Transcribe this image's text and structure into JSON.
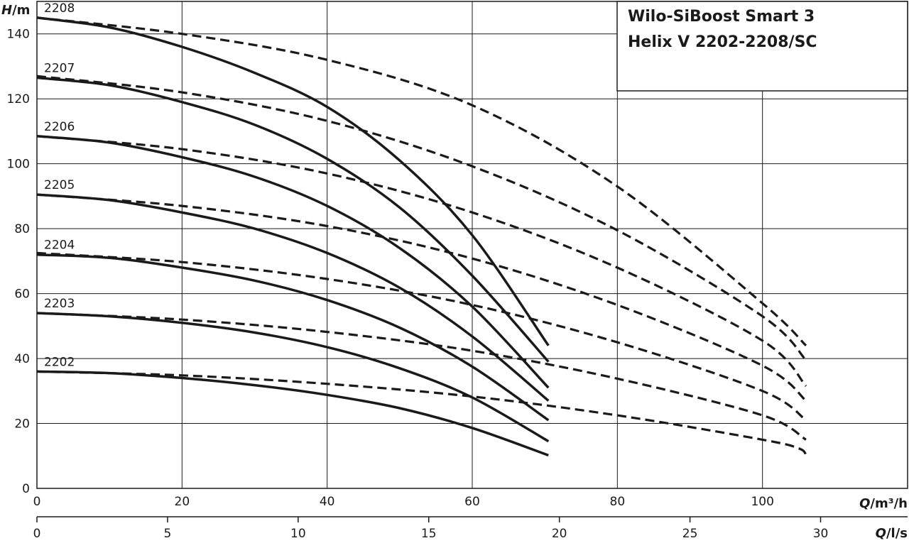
{
  "chart_data": {
    "type": "line",
    "title_lines": [
      "Wilo-SiBoost Smart 3",
      "Helix V 2202-2208/SC"
    ],
    "y_axis": {
      "name": "H",
      "unit": "/m",
      "range": [
        0,
        150
      ],
      "ticks": [
        0,
        20,
        40,
        60,
        80,
        100,
        120,
        140
      ]
    },
    "x_axis": {
      "name": "Q",
      "unit": "/m³/h",
      "range": [
        0,
        120
      ],
      "ticks": [
        0,
        20,
        40,
        60,
        80,
        100
      ]
    },
    "x2_axis": {
      "name": "Q",
      "unit": "/l/s",
      "range": [
        0,
        33.33
      ],
      "ticks": [
        0,
        5,
        10,
        15,
        20,
        25,
        30
      ]
    },
    "grid": true,
    "series": [
      {
        "name": "2202",
        "solid": [
          [
            0,
            36
          ],
          [
            10,
            35.5
          ],
          [
            20,
            34
          ],
          [
            30,
            31.8
          ],
          [
            40,
            28.8
          ],
          [
            50,
            24.7
          ],
          [
            60,
            18.6
          ],
          [
            70.5,
            10.2
          ]
        ],
        "dashed": [
          [
            0,
            36
          ],
          [
            20,
            34.8
          ],
          [
            40,
            32.2
          ],
          [
            60,
            28.3
          ],
          [
            80,
            22.5
          ],
          [
            100,
            15
          ],
          [
            105,
            12.3
          ],
          [
            106,
            10.3
          ]
        ]
      },
      {
        "name": "2203",
        "solid": [
          [
            0,
            54
          ],
          [
            10,
            53
          ],
          [
            20,
            51
          ],
          [
            30,
            48
          ],
          [
            40,
            43.5
          ],
          [
            50,
            37
          ],
          [
            60,
            28
          ],
          [
            70.5,
            14.5
          ]
        ],
        "dashed": [
          [
            0,
            54
          ],
          [
            20,
            52
          ],
          [
            40,
            48.2
          ],
          [
            60,
            42.4
          ],
          [
            80,
            33.8
          ],
          [
            100,
            22.5
          ],
          [
            106,
            15
          ]
        ]
      },
      {
        "name": "2204",
        "solid": [
          [
            0,
            72
          ],
          [
            10,
            71
          ],
          [
            20,
            68
          ],
          [
            30,
            64
          ],
          [
            40,
            58
          ],
          [
            50,
            49.5
          ],
          [
            60,
            37.5
          ],
          [
            70.5,
            21
          ]
        ],
        "dashed": [
          [
            0,
            72.5
          ],
          [
            20,
            69.7
          ],
          [
            40,
            64.5
          ],
          [
            60,
            56.5
          ],
          [
            80,
            45
          ],
          [
            100,
            30
          ],
          [
            106,
            21
          ]
        ]
      },
      {
        "name": "2205",
        "solid": [
          [
            0,
            90.5
          ],
          [
            10,
            88.8
          ],
          [
            20,
            85
          ],
          [
            30,
            80
          ],
          [
            40,
            72.5
          ],
          [
            50,
            61.8
          ],
          [
            60,
            46.8
          ],
          [
            70.5,
            27
          ]
        ],
        "dashed": [
          [
            0,
            90.5
          ],
          [
            20,
            87
          ],
          [
            40,
            80.8
          ],
          [
            60,
            70.8
          ],
          [
            80,
            56.5
          ],
          [
            100,
            37.8
          ],
          [
            106,
            27
          ]
        ]
      },
      {
        "name": "2206",
        "solid": [
          [
            0,
            108.5
          ],
          [
            10,
            106.5
          ],
          [
            20,
            102
          ],
          [
            30,
            96
          ],
          [
            40,
            87
          ],
          [
            50,
            74
          ],
          [
            60,
            56
          ],
          [
            70.5,
            31
          ]
        ],
        "dashed": [
          [
            0,
            108.5
          ],
          [
            20,
            104.5
          ],
          [
            40,
            97
          ],
          [
            60,
            85
          ],
          [
            80,
            68
          ],
          [
            100,
            45.5
          ],
          [
            106,
            31.5
          ]
        ]
      },
      {
        "name": "2207",
        "solid": [
          [
            0,
            126.5
          ],
          [
            10,
            124.2
          ],
          [
            20,
            119
          ],
          [
            30,
            112
          ],
          [
            40,
            101.5
          ],
          [
            50,
            86.5
          ],
          [
            60,
            65.5
          ],
          [
            70.5,
            39
          ]
        ],
        "dashed": [
          [
            0,
            127
          ],
          [
            20,
            122
          ],
          [
            40,
            113.2
          ],
          [
            60,
            99.2
          ],
          [
            80,
            79.5
          ],
          [
            100,
            53
          ],
          [
            106,
            39.5
          ]
        ]
      },
      {
        "name": "2208",
        "solid": [
          [
            0,
            145
          ],
          [
            10,
            142
          ],
          [
            20,
            136
          ],
          [
            30,
            128
          ],
          [
            40,
            117.5
          ],
          [
            50,
            101
          ],
          [
            60,
            78
          ],
          [
            70.5,
            44
          ]
        ],
        "dashed": [
          [
            0,
            145
          ],
          [
            20,
            140
          ],
          [
            40,
            132
          ],
          [
            60,
            118
          ],
          [
            80,
            93
          ],
          [
            100,
            57
          ],
          [
            106,
            44
          ]
        ]
      }
    ]
  }
}
